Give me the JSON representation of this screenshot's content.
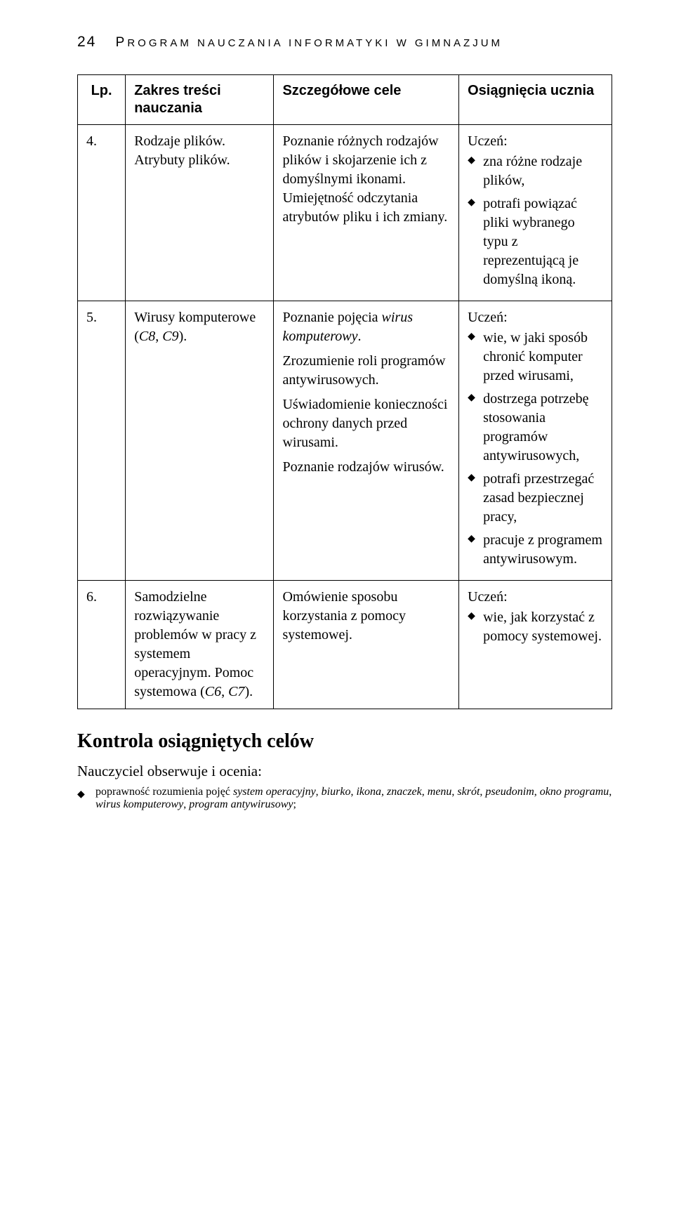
{
  "header": {
    "page_number": "24",
    "title_prefix": "P",
    "title_rest_smallcap": "ROGRAM NAUCZANIA INFORMATYKI W GIMNAZJUM"
  },
  "table": {
    "head": {
      "lp": "Lp.",
      "zakres": "Zakres treści nauczania",
      "cele": "Szczegółowe cele",
      "osiagniecia": "Osiągnięcia ucznia"
    },
    "rows": [
      {
        "lp": "4.",
        "zakres": "Rodzaje plików. Atrybuty plików.",
        "cele": [
          "Poznanie różnych rodzajów plików i skojarzenie ich z domyślnymi ikonami. Umiejętność odczytania atrybutów pliku i ich zmiany."
        ],
        "osiagn_lead": "Uczeń:",
        "osiagn_items": [
          "zna różne rodzaje plików,",
          "potrafi powiązać pliki wybranego typu z reprezentującą je domyślną ikoną."
        ]
      },
      {
        "lp": "5.",
        "zakres_html": "Wirusy komputerowe (<span class=\"italic\">C8</span>, <span class=\"italic\">C9</span>).",
        "cele_html": [
          "Poznanie pojęcia <span class=\"italic\">wirus komputerowy</span>.",
          "Zrozumienie roli programów antywirusowych.",
          "Uświadomienie konieczności ochrony danych przed wirusami.",
          "Poznanie rodzajów wirusów."
        ],
        "osiagn_lead": "Uczeń:",
        "osiagn_items": [
          "wie, w jaki sposób chronić komputer przed wirusami,",
          "dostrzega potrzebę stosowania programów antywirusowych,",
          "potrafi przestrzegać zasad bezpiecznej pracy,",
          "pracuje z programem antywirusowym."
        ]
      },
      {
        "lp": "6.",
        "zakres_html": "Samodzielne rozwiązywanie problemów w pracy z systemem operacyjnym. Pomoc systemowa (<span class=\"italic\">C6</span>, <span class=\"italic\">C7</span>).",
        "cele": [
          "Omówienie sposobu korzystania z pomocy systemowej."
        ],
        "osiagn_lead": "Uczeń:",
        "osiagn_items": [
          "wie, jak korzystać z pomocy systemowej."
        ]
      }
    ]
  },
  "after": {
    "heading": "Kontrola osiągniętych celów",
    "lead": "Nauczyciel obserwuje i ocenia:",
    "item_html": "poprawność rozumienia pojęć <span class=\"italic\">system operacyjny</span>, <span class=\"italic\">biurko</span>, <span class=\"italic\">ikona</span>, <span class=\"italic\">znaczek</span>, <span class=\"italic\">menu</span>, <span class=\"italic\">skrót</span>, <span class=\"italic\">pseudonim</span>, <span class=\"italic\">okno programu</span>, <span class=\"italic\">wirus komputerowy</span>, <span class=\"italic\">program antywirusowy</span>;"
  }
}
